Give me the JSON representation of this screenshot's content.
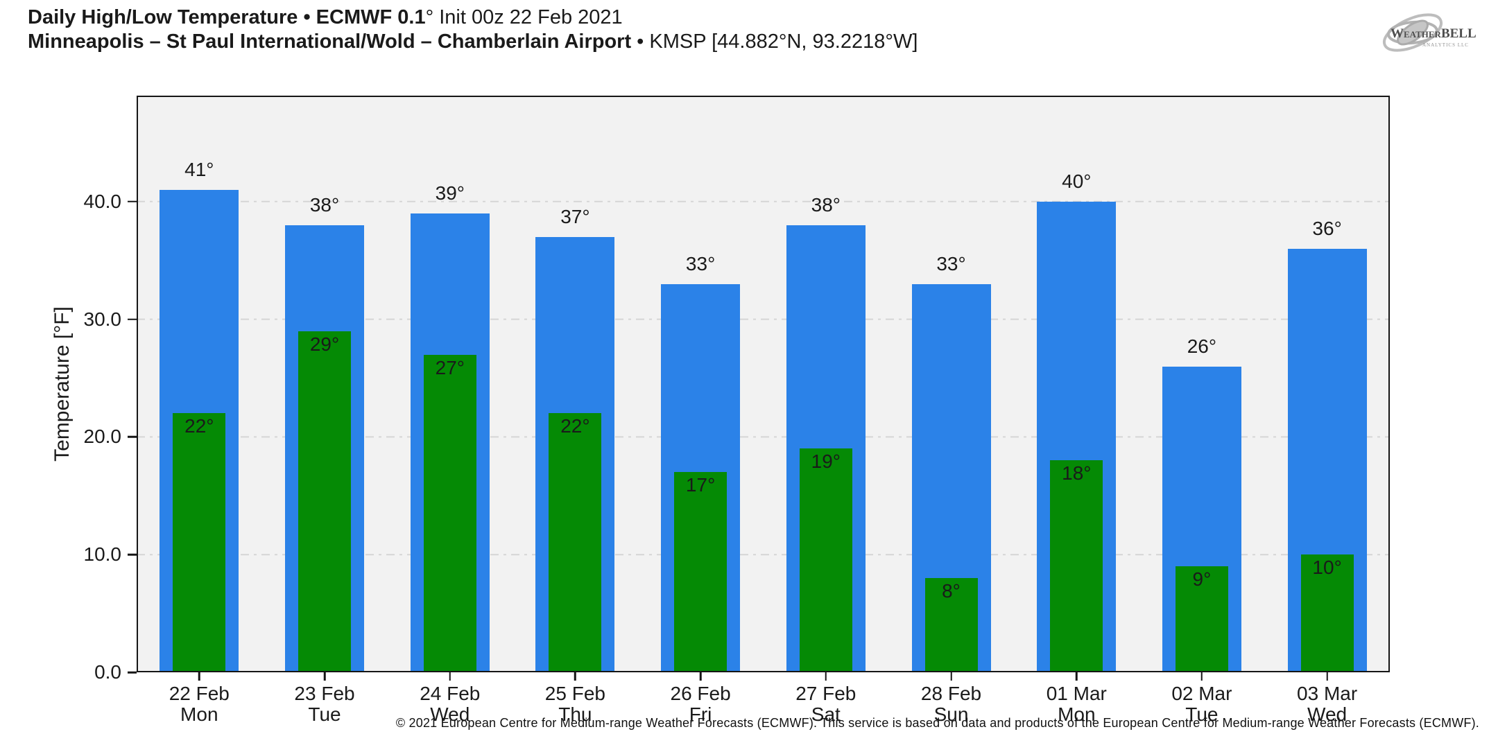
{
  "header": {
    "title_bold": "Daily High/Low Temperature • ECMWF 0.1",
    "title_light": "° Init 00z 22 Feb 2021",
    "subtitle_bold": "Minneapolis – St Paul International/Wold – Chamberlain Airport",
    "subtitle_light": " • KMSP [44.882°N, 93.2218°W]"
  },
  "logo": {
    "brand_weather": "Weather",
    "brand_bell": "BELL",
    "tagline": "ANALYTICS LLC"
  },
  "chart_data": {
    "type": "bar",
    "title": "Daily High/Low Temperature • ECMWF 0.1° Init 00z 22 Feb 2021",
    "station": "Minneapolis – St Paul International/Wold – Chamberlain Airport • KMSP [44.882°N, 93.2218°W]",
    "ylabel": "Temperature [°F]",
    "ylim": [
      0,
      49
    ],
    "yticks": [
      0,
      10,
      20,
      30,
      40
    ],
    "ytick_labels": [
      "0.0",
      "10.0",
      "20.0",
      "30.0",
      "40.0"
    ],
    "grid": {
      "axis": "y",
      "style": "dash-dot",
      "color": "#d5d5d5"
    },
    "legend_position": "none",
    "plot_background": "#f2f2f2",
    "value_suffix": "°",
    "categories": [
      {
        "date": "22 Feb",
        "day": "Mon"
      },
      {
        "date": "23 Feb",
        "day": "Tue"
      },
      {
        "date": "24 Feb",
        "day": "Wed"
      },
      {
        "date": "25 Feb",
        "day": "Thu"
      },
      {
        "date": "26 Feb",
        "day": "Fri"
      },
      {
        "date": "27 Feb",
        "day": "Sat"
      },
      {
        "date": "28 Feb",
        "day": "Sun"
      },
      {
        "date": "01 Mar",
        "day": "Mon"
      },
      {
        "date": "02 Mar",
        "day": "Tue"
      },
      {
        "date": "03 Mar",
        "day": "Wed"
      }
    ],
    "series": [
      {
        "name": "High",
        "color": "#2b82e8",
        "values": [
          41,
          38,
          39,
          37,
          33,
          38,
          33,
          40,
          26,
          36
        ]
      },
      {
        "name": "Low",
        "color": "#058a05",
        "values": [
          22,
          29,
          27,
          22,
          17,
          19,
          8,
          18,
          9,
          10
        ]
      }
    ]
  },
  "footer": {
    "copyright": "© 2021 European Centre for Medium-range Weather Forecasts (ECMWF). This service is based on data and products of the European Centre for Medium-range Weather Forecasts (ECMWF)."
  }
}
